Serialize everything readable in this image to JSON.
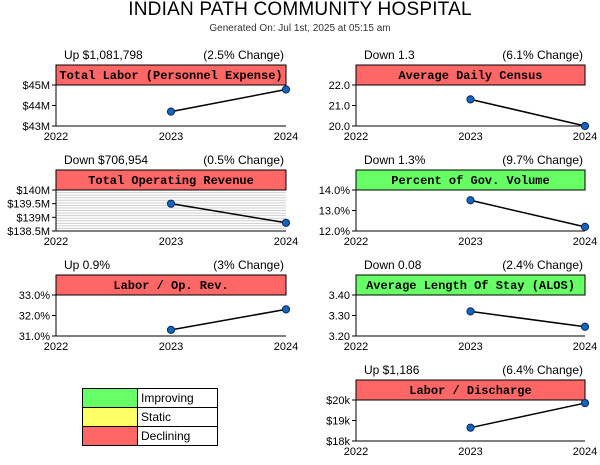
{
  "header": {
    "title": "INDIAN PATH COMMUNITY HOSPITAL",
    "generated": "Generated On: Jul 1st, 2025 at 05:15 am"
  },
  "colors": {
    "improving": "#66ff66",
    "static": "#ffff66",
    "declining": "#ff6666",
    "point": "#1565c0",
    "line": "#000000"
  },
  "legend": [
    {
      "label": "Improving",
      "status": "improving"
    },
    {
      "label": "Static",
      "status": "static"
    },
    {
      "label": "Declining",
      "status": "declining"
    }
  ],
  "chart_data": [
    {
      "type": "line",
      "title": "Total Labor (Personnel Expense)",
      "change_text": "Up $1,081,798",
      "pct_text": "(2.5% Change)",
      "status": "declining",
      "categories": [
        "2022",
        "2023",
        "2024"
      ],
      "values": [
        null,
        43700000,
        44780000
      ],
      "ylim": [
        43000000,
        45000000
      ],
      "yticks": [
        43000000,
        44000000,
        45000000
      ],
      "ytick_labels": [
        "$43M",
        "$44M",
        "$45M"
      ],
      "grid": false
    },
    {
      "type": "line",
      "title": "Average Daily Census",
      "change_text": "Down 1.3",
      "pct_text": "(6.1% Change)",
      "status": "declining",
      "categories": [
        "2022",
        "2023",
        "2024"
      ],
      "values": [
        null,
        21.3,
        20.0
      ],
      "ylim": [
        20.0,
        22.0
      ],
      "yticks": [
        20.0,
        21.0,
        22.0
      ],
      "ytick_labels": [
        "20.0",
        "21.0",
        "22.0"
      ],
      "grid": false
    },
    {
      "type": "line",
      "title": "Total Operating Revenue",
      "change_text": "Down $706,954",
      "pct_text": "(0.5% Change)",
      "status": "declining",
      "categories": [
        "2022",
        "2023",
        "2024"
      ],
      "values": [
        null,
        139500000,
        138800000
      ],
      "ylim": [
        138500000,
        140000000
      ],
      "yticks": [
        138500000,
        139000000,
        139500000,
        140000000
      ],
      "ytick_labels": [
        "$138.5M",
        "$139M",
        "$139.5M",
        "$140M"
      ],
      "grid": true
    },
    {
      "type": "line",
      "title": "Percent of Gov. Volume",
      "change_text": "Down 1.3%",
      "pct_text": "(9.7% Change)",
      "status": "improving",
      "categories": [
        "2022",
        "2023",
        "2024"
      ],
      "values": [
        null,
        13.5,
        12.2
      ],
      "ylim": [
        12.0,
        14.0
      ],
      "yticks": [
        12.0,
        13.0,
        14.0
      ],
      "ytick_labels": [
        "12.0%",
        "13.0%",
        "14.0%"
      ],
      "grid": false
    },
    {
      "type": "line",
      "title": "Labor / Op. Rev.",
      "change_text": "Up 0.9%",
      "pct_text": "(3% Change)",
      "status": "declining",
      "categories": [
        "2022",
        "2023",
        "2024"
      ],
      "values": [
        null,
        31.3,
        32.3
      ],
      "ylim": [
        31.0,
        33.0
      ],
      "yticks": [
        31.0,
        32.0,
        33.0
      ],
      "ytick_labels": [
        "31.0%",
        "32.0%",
        "33.0%"
      ],
      "grid": false
    },
    {
      "type": "line",
      "title": "Average Length Of Stay (ALOS)",
      "change_text": "Down 0.08",
      "pct_text": "(2.4% Change)",
      "status": "improving",
      "categories": [
        "2022",
        "2023",
        "2024"
      ],
      "values": [
        null,
        3.32,
        3.245
      ],
      "ylim": [
        3.2,
        3.4
      ],
      "yticks": [
        3.2,
        3.3,
        3.4
      ],
      "ytick_labels": [
        "3.20",
        "3.30",
        "3.40"
      ],
      "grid": false
    },
    {
      "type": "line",
      "title": "Labor / Discharge",
      "change_text": "Up $1,186",
      "pct_text": "(6.4% Change)",
      "status": "declining",
      "categories": [
        "2022",
        "2023",
        "2024"
      ],
      "values": [
        null,
        18650,
        19850
      ],
      "ylim": [
        18000,
        20000
      ],
      "yticks": [
        18000,
        19000,
        20000
      ],
      "ytick_labels": [
        "$18k",
        "$19k",
        "$20k"
      ],
      "grid": false
    }
  ]
}
